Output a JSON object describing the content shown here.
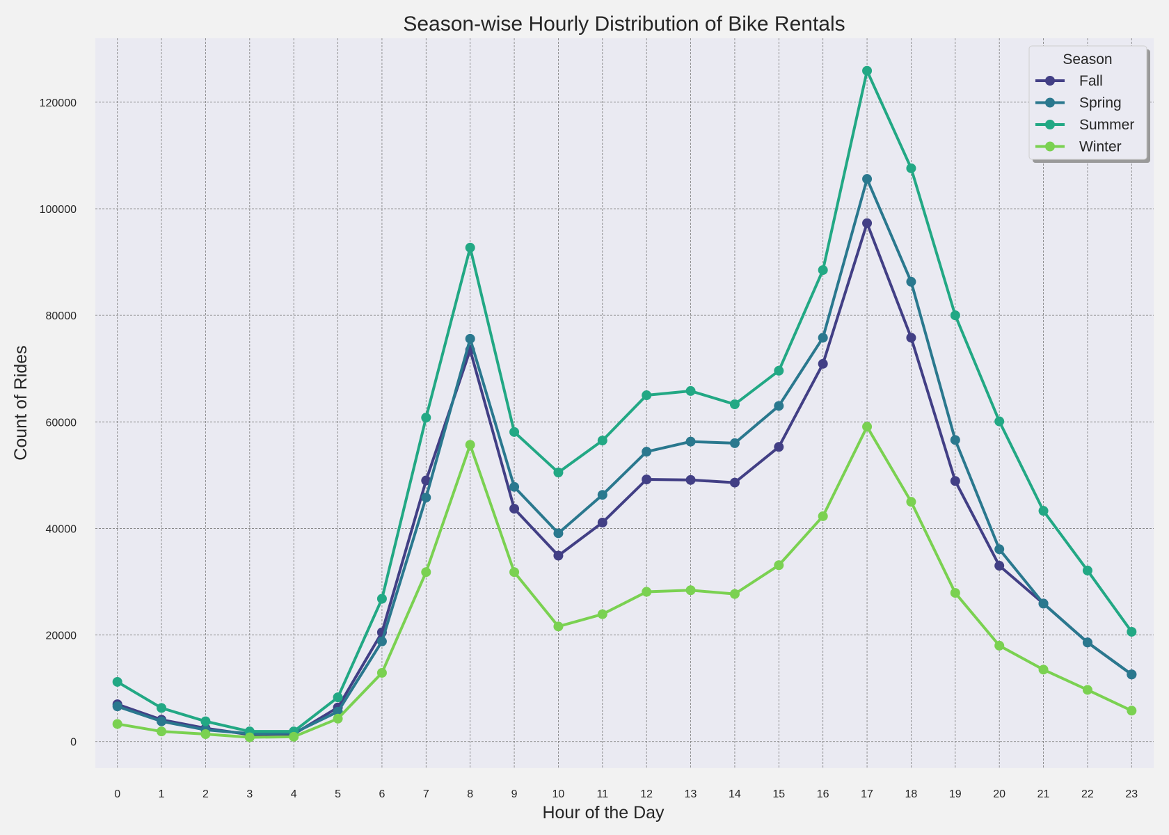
{
  "chart_data": {
    "type": "line",
    "title": "Season-wise Hourly Distribution of Bike Rentals",
    "xlabel": "Hour of the Day",
    "ylabel": "Count of Rides",
    "x": [
      0,
      1,
      2,
      3,
      4,
      5,
      6,
      7,
      8,
      9,
      10,
      11,
      12,
      13,
      14,
      15,
      16,
      17,
      18,
      19,
      20,
      21,
      22,
      23
    ],
    "x_tick_labels": [
      "0",
      "1",
      "2",
      "3",
      "4",
      "5",
      "6",
      "7",
      "8",
      "9",
      "10",
      "11",
      "12",
      "13",
      "14",
      "15",
      "16",
      "17",
      "18",
      "19",
      "20",
      "21",
      "22",
      "23"
    ],
    "xlim": [
      -0.5,
      23.5
    ],
    "ylim": [
      -5000,
      132000
    ],
    "y_ticks": [
      0,
      20000,
      40000,
      60000,
      80000,
      100000,
      120000
    ],
    "y_tick_labels": [
      "0",
      "20000",
      "40000",
      "60000",
      "80000",
      "100000",
      "120000"
    ],
    "grid": true,
    "legend": {
      "title": "Season",
      "placement": "top-right"
    },
    "series": [
      {
        "name": "Fall",
        "color": "#423f85",
        "values": [
          7000,
          4100,
          2500,
          1300,
          1400,
          6400,
          20500,
          49000,
          73500,
          43700,
          34900,
          41100,
          49200,
          49100,
          48600,
          55300,
          70900,
          97300,
          75800,
          48900,
          33000,
          25900,
          18600,
          12600
        ]
      },
      {
        "name": "Spring",
        "color": "#2a788e",
        "values": [
          6600,
          3800,
          2200,
          1500,
          1600,
          5600,
          18800,
          45800,
          75600,
          47800,
          39100,
          46300,
          54400,
          56300,
          56000,
          63000,
          75800,
          105600,
          86300,
          56600,
          36100,
          25900,
          18600,
          12600
        ]
      },
      {
        "name": "Summer",
        "color": "#22a884",
        "values": [
          11200,
          6300,
          3800,
          1900,
          1900,
          8300,
          26800,
          60800,
          92700,
          58100,
          50500,
          56500,
          65000,
          65800,
          63300,
          69600,
          88500,
          125900,
          107600,
          80000,
          60100,
          43300,
          32100,
          20600
        ]
      },
      {
        "name": "Winter",
        "color": "#7ad151",
        "values": [
          3300,
          1900,
          1400,
          800,
          900,
          4300,
          12900,
          31800,
          55700,
          31800,
          21600,
          23900,
          28100,
          28400,
          27700,
          33100,
          42300,
          59100,
          45000,
          27900,
          18000,
          13500,
          9700,
          5800
        ]
      }
    ]
  }
}
